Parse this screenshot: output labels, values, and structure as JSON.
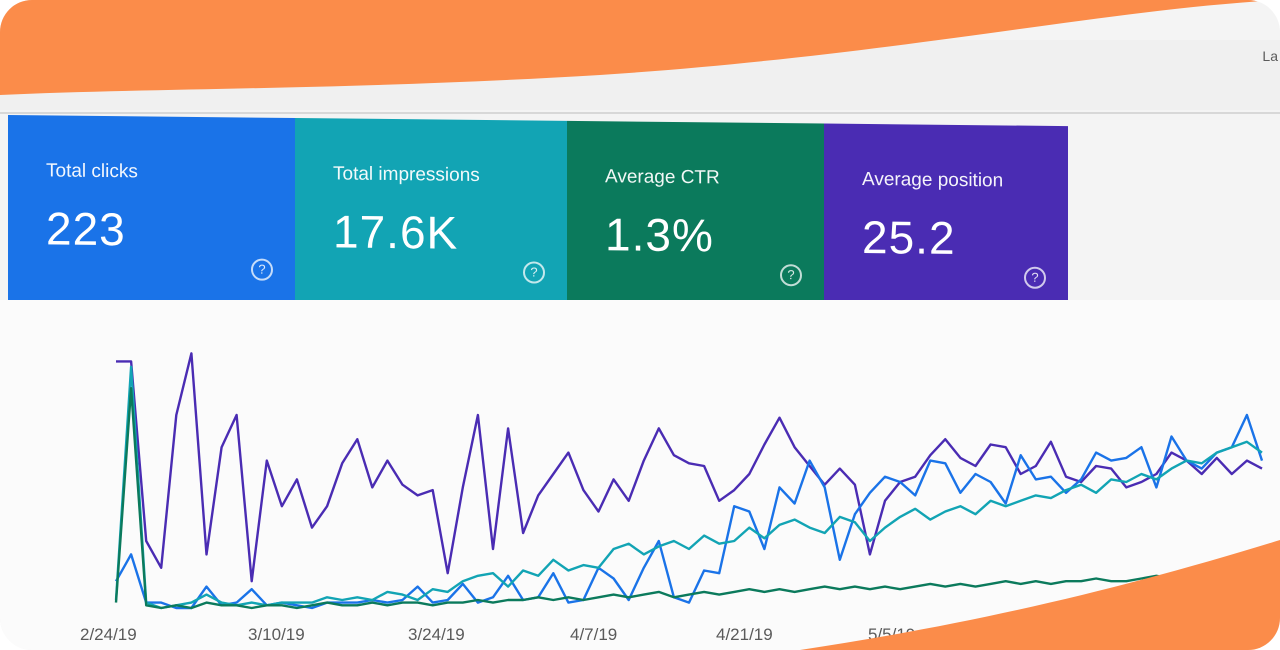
{
  "top_right_label": "La",
  "cards": [
    {
      "label": "Total clicks",
      "value": "223",
      "color": "#1a73e8"
    },
    {
      "label": "Total impressions",
      "value": "17.6K",
      "color": "#12a4b4"
    },
    {
      "label": "Average CTR",
      "value": "1.3%",
      "color": "#0b7a5c"
    },
    {
      "label": "Average position",
      "value": "25.2",
      "color": "#4a2cb3"
    }
  ],
  "help_glyph": "?",
  "chart_data": {
    "type": "line",
    "x_ticks": [
      "2/24/19",
      "3/10/19",
      "3/24/19",
      "4/7/19",
      "4/21/19",
      "5/5/19"
    ],
    "series": [
      {
        "color": "#4a2cb3",
        "values": [
          0.92,
          0.92,
          0.25,
          0.15,
          0.72,
          0.95,
          0.2,
          0.6,
          0.72,
          0.1,
          0.55,
          0.38,
          0.48,
          0.3,
          0.38,
          0.54,
          0.63,
          0.45,
          0.55,
          0.46,
          0.42,
          0.44,
          0.13,
          0.45,
          0.72,
          0.22,
          0.67,
          0.28,
          0.42,
          0.5,
          0.58,
          0.44,
          0.36,
          0.48,
          0.4,
          0.55,
          0.67,
          0.57,
          0.54,
          0.53,
          0.4,
          0.44,
          0.5,
          0.61,
          0.71,
          0.6,
          0.53,
          0.46,
          0.52,
          0.46,
          0.2,
          0.4,
          0.47,
          0.49,
          0.57,
          0.63,
          0.56,
          0.53,
          0.61,
          0.6,
          0.5,
          0.53,
          0.62,
          0.49,
          0.47,
          0.53,
          0.52,
          0.45,
          0.47,
          0.5,
          0.58,
          0.55,
          0.5,
          0.56,
          0.5,
          0.55,
          0.52
        ]
      },
      {
        "color": "#1a73e8",
        "values": [
          0.1,
          0.2,
          0.02,
          0.02,
          0.0,
          0.0,
          0.08,
          0.01,
          0.02,
          0.07,
          0.01,
          0.02,
          0.01,
          0.0,
          0.02,
          0.02,
          0.02,
          0.03,
          0.02,
          0.03,
          0.08,
          0.02,
          0.03,
          0.09,
          0.02,
          0.04,
          0.12,
          0.03,
          0.04,
          0.13,
          0.02,
          0.03,
          0.15,
          0.11,
          0.03,
          0.15,
          0.25,
          0.04,
          0.02,
          0.14,
          0.13,
          0.38,
          0.36,
          0.22,
          0.45,
          0.39,
          0.55,
          0.45,
          0.18,
          0.35,
          0.43,
          0.49,
          0.47,
          0.42,
          0.55,
          0.54,
          0.43,
          0.5,
          0.47,
          0.39,
          0.57,
          0.48,
          0.49,
          0.43,
          0.48,
          0.58,
          0.55,
          0.56,
          0.6,
          0.45,
          0.64,
          0.55,
          0.52,
          0.58,
          0.6,
          0.72,
          0.55
        ]
      },
      {
        "color": "#12a4b4",
        "values": [
          0.03,
          0.9,
          0.02,
          0.0,
          0.01,
          0.02,
          0.05,
          0.02,
          0.01,
          0.02,
          0.01,
          0.02,
          0.02,
          0.02,
          0.04,
          0.03,
          0.04,
          0.03,
          0.06,
          0.05,
          0.03,
          0.07,
          0.06,
          0.1,
          0.12,
          0.13,
          0.08,
          0.14,
          0.12,
          0.18,
          0.14,
          0.16,
          0.15,
          0.22,
          0.24,
          0.2,
          0.23,
          0.25,
          0.22,
          0.27,
          0.24,
          0.25,
          0.3,
          0.26,
          0.31,
          0.33,
          0.3,
          0.28,
          0.34,
          0.32,
          0.25,
          0.3,
          0.34,
          0.37,
          0.33,
          0.36,
          0.38,
          0.35,
          0.4,
          0.38,
          0.4,
          0.42,
          0.41,
          0.44,
          0.46,
          0.43,
          0.48,
          0.47,
          0.5,
          0.48,
          0.52,
          0.55,
          0.54,
          0.58,
          0.6,
          0.62,
          0.58
        ]
      },
      {
        "color": "#0b7a5c",
        "values": [
          0.02,
          0.82,
          0.01,
          0.0,
          0.01,
          0.0,
          0.02,
          0.01,
          0.01,
          0.0,
          0.01,
          0.01,
          0.0,
          0.01,
          0.02,
          0.01,
          0.01,
          0.02,
          0.01,
          0.02,
          0.02,
          0.01,
          0.02,
          0.02,
          0.03,
          0.02,
          0.03,
          0.03,
          0.04,
          0.03,
          0.04,
          0.03,
          0.04,
          0.05,
          0.04,
          0.05,
          0.06,
          0.04,
          0.05,
          0.06,
          0.05,
          0.06,
          0.07,
          0.06,
          0.07,
          0.06,
          0.07,
          0.08,
          0.07,
          0.08,
          0.07,
          0.08,
          0.07,
          0.08,
          0.09,
          0.08,
          0.09,
          0.08,
          0.09,
          0.1,
          0.09,
          0.1,
          0.09,
          0.1,
          0.1,
          0.11,
          0.1,
          0.1,
          0.11,
          0.12,
          0.11,
          0.12,
          0.11,
          0.12,
          0.13,
          0.12,
          0.13
        ]
      }
    ]
  }
}
